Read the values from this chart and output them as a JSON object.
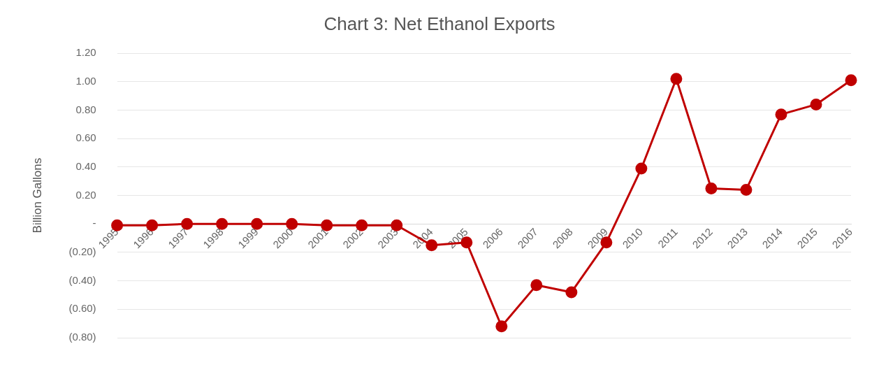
{
  "chart_data": {
    "type": "line",
    "title": "Chart 3: Net Ethanol Exports",
    "ylabel": "Billion Gallons",
    "categories": [
      "1995",
      "1996",
      "1997",
      "1998",
      "1999",
      "2000",
      "2001",
      "2002",
      "2003",
      "2004",
      "2005",
      "2006",
      "2007",
      "2008",
      "2009",
      "2010",
      "2011",
      "2012",
      "2013",
      "2014",
      "2015",
      "2016"
    ],
    "series": [
      {
        "color": "#c00000",
        "values": [
          -0.01,
          -0.01,
          0.0,
          0.0,
          0.0,
          0.0,
          -0.01,
          -0.01,
          -0.01,
          -0.15,
          -0.13,
          -0.72,
          -0.43,
          -0.48,
          -0.13,
          0.39,
          1.02,
          0.25,
          0.24,
          0.77,
          0.84,
          1.01
        ]
      }
    ],
    "ylim": [
      -0.8,
      1.2
    ],
    "yticks": [
      {
        "value": -0.8,
        "label": "(0.80)"
      },
      {
        "value": -0.6,
        "label": "(0.60)"
      },
      {
        "value": -0.4,
        "label": "(0.40)"
      },
      {
        "value": -0.2,
        "label": "(0.20)"
      },
      {
        "value": 0,
        "label": "-"
      },
      {
        "value": 0.2,
        "label": "0.20"
      },
      {
        "value": 0.4,
        "label": "0.40"
      },
      {
        "value": 0.6,
        "label": "0.60"
      },
      {
        "value": 0.8,
        "label": "0.80"
      },
      {
        "value": 1.0,
        "label": "1.00"
      },
      {
        "value": 1.2,
        "label": "1.20"
      }
    ],
    "grid": "y",
    "legend": false,
    "marker": "circle",
    "line_style": "solid"
  }
}
